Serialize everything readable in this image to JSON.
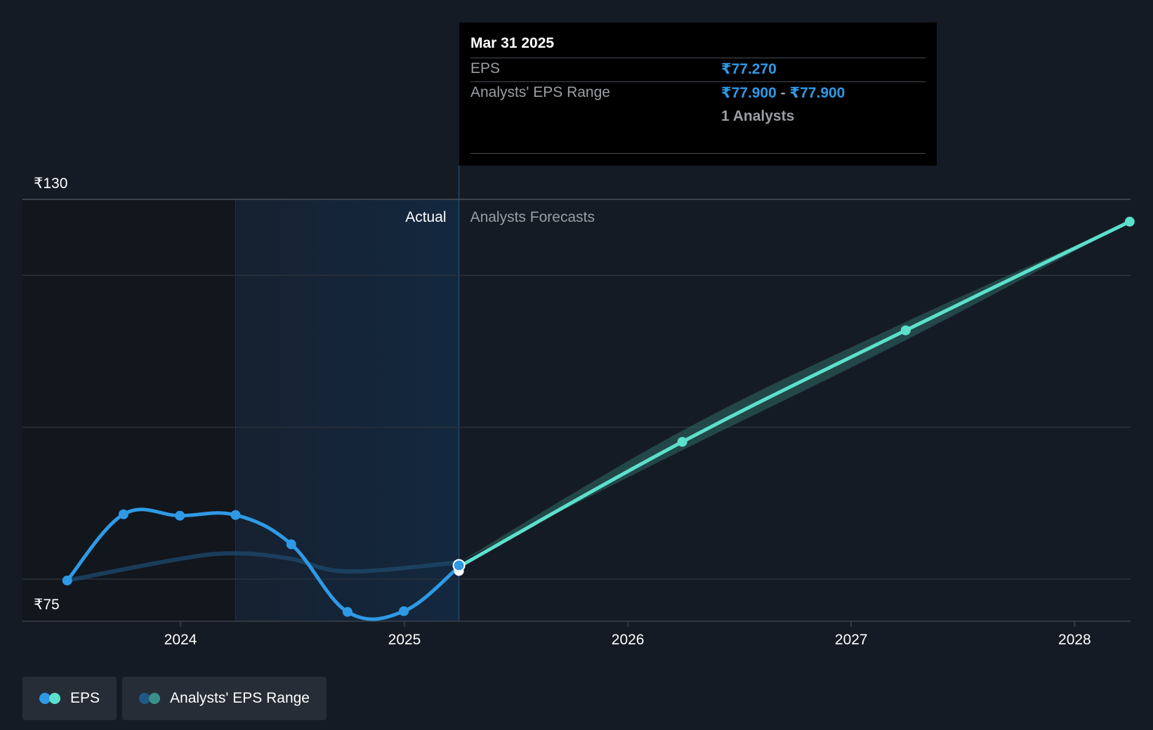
{
  "chart_data": {
    "type": "line",
    "y_axis": {
      "ticks": [
        "₹75",
        "₹130"
      ],
      "range": [
        75,
        130
      ],
      "currency": "₹"
    },
    "x_axis": {
      "ticks": [
        "2024",
        "2025",
        "2026",
        "2027",
        "2028"
      ]
    },
    "regions": {
      "actual_label": "Actual",
      "forecast_label": "Analysts Forecasts"
    },
    "series": [
      {
        "name": "EPS",
        "color": "#2e9ae6",
        "points": [
          [
            "2023-06-30",
            75.3
          ],
          [
            "2023-09-30",
            84.8
          ],
          [
            "2023-12-31",
            84.6
          ],
          [
            "2024-03-31",
            84.7
          ],
          [
            "2024-06-30",
            80.5
          ],
          [
            "2024-09-30",
            70.8
          ],
          [
            "2024-12-31",
            70.9
          ],
          [
            "2025-03-31",
            77.27
          ]
        ]
      },
      {
        "name": "EPS forecast",
        "color": "#5ce0cc",
        "points": [
          [
            "2025-03-31",
            77.27
          ],
          [
            "2026-03-31",
            95.2
          ],
          [
            "2027-03-31",
            111.2
          ],
          [
            "2028-03-31",
            126.8
          ]
        ]
      }
    ],
    "range_band": {
      "name": "Analysts' EPS Range",
      "upper": [
        [
          "2025-03-31",
          77.9
        ],
        [
          "2026-03-31",
          96.8
        ],
        [
          "2027-03-31",
          112.4
        ],
        [
          "2028-03-31",
          126.8
        ]
      ],
      "lower": [
        [
          "2025-03-31",
          77.9
        ],
        [
          "2026-03-31",
          94.0
        ],
        [
          "2027-03-31",
          109.8
        ],
        [
          "2028-03-31",
          126.8
        ]
      ],
      "past_upper": [
        [
          "2023-06-30",
          75.3
        ],
        [
          "2023-12-31",
          78.4
        ],
        [
          "2024-03-31",
          79.2
        ],
        [
          "2024-06-30",
          78.4
        ],
        [
          "2024-09-30",
          76.6
        ],
        [
          "2025-03-31",
          77.9
        ]
      ]
    }
  },
  "tooltip": {
    "date": "Mar 31 2025",
    "eps_label": "EPS",
    "eps_value": "₹77.270",
    "range_label": "Analysts' EPS Range",
    "range_low": "₹77.900",
    "range_sep": " - ",
    "range_high": "₹77.900",
    "analysts": "1 Analysts"
  },
  "legend": [
    {
      "label": "EPS",
      "colors": [
        "#2e9ae6",
        "#5ce0cc"
      ]
    },
    {
      "label": "Analysts' EPS Range",
      "colors": [
        "#1e5a85",
        "#3c8f88"
      ]
    }
  ]
}
